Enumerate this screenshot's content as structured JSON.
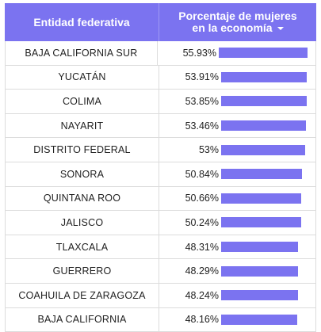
{
  "header": {
    "entity_label": "Entidad federativa",
    "pct_label_line1": "Porcentaje de mujeres",
    "pct_label_line2": "en la economía",
    "sort_icon": "sort-descending-icon"
  },
  "colors": {
    "accent": "#7b73f0",
    "border": "#dcdcdc"
  },
  "bar_max": 55.93,
  "rows": [
    {
      "entity": "BAJA CALIFORNIA SUR",
      "value_text": "55.93%",
      "value": 55.93
    },
    {
      "entity": "YUCATÁN",
      "value_text": "53.91%",
      "value": 53.91
    },
    {
      "entity": "COLIMA",
      "value_text": "53.85%",
      "value": 53.85
    },
    {
      "entity": "NAYARIT",
      "value_text": "53.46%",
      "value": 53.46
    },
    {
      "entity": "DISTRITO FEDERAL",
      "value_text": "53%",
      "value": 53.0
    },
    {
      "entity": "SONORA",
      "value_text": "50.84%",
      "value": 50.84
    },
    {
      "entity": "QUINTANA ROO",
      "value_text": "50.66%",
      "value": 50.66
    },
    {
      "entity": "JALISCO",
      "value_text": "50.24%",
      "value": 50.24
    },
    {
      "entity": "TLAXCALA",
      "value_text": "48.31%",
      "value": 48.31
    },
    {
      "entity": "GUERRERO",
      "value_text": "48.29%",
      "value": 48.29
    },
    {
      "entity": "COAHUILA DE ZARAGOZA",
      "value_text": "48.24%",
      "value": 48.24
    },
    {
      "entity": "BAJA CALIFORNIA",
      "value_text": "48.16%",
      "value": 48.16
    }
  ]
}
